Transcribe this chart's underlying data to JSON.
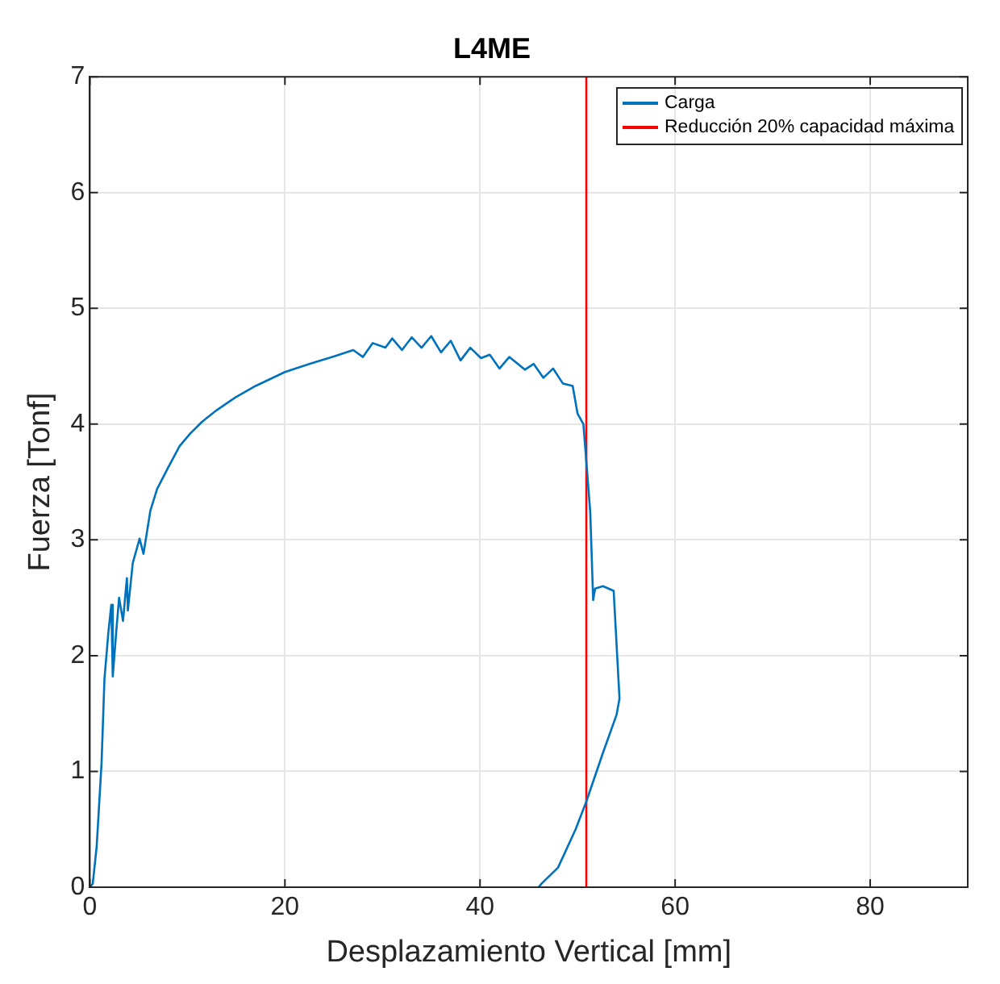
{
  "chart_data": {
    "type": "line",
    "title": "L4ME",
    "xlabel": "Desplazamiento Vertical [mm]",
    "ylabel": "Fuerza [Tonf]",
    "xlim": [
      0,
      90
    ],
    "xticks": [
      0,
      20,
      40,
      60,
      80
    ],
    "ylim": [
      0,
      7
    ],
    "yticks": [
      0,
      1,
      2,
      3,
      4,
      5,
      6,
      7
    ],
    "grid": true,
    "legend": "top right",
    "series": [
      {
        "name": "Carga",
        "color": "#0072bd",
        "x": [
          0,
          0.3,
          0.7,
          1.2,
          1.5,
          1.9,
          2.2,
          2.35,
          2.7,
          3.0,
          3.4,
          3.8,
          3.9,
          4.4,
          5.1,
          5.5,
          6.2,
          6.9,
          8.0,
          9.2,
          10.3,
          11.5,
          13.0,
          14.9,
          17.0,
          20,
          22.5,
          25.2,
          27,
          28,
          29,
          30.3,
          31,
          32,
          33,
          34,
          35,
          36,
          37,
          38,
          39,
          40.1,
          41,
          42,
          43,
          44.6,
          45.5,
          46.5,
          47.5,
          48.5,
          49.5,
          50,
          50.6,
          51.3,
          51.6,
          51.8,
          52.6,
          53.7,
          54.3,
          54.0,
          52.6,
          50.9,
          49.8,
          48,
          46.3,
          46
        ],
        "values": [
          0,
          0.03,
          0.35,
          1.07,
          1.8,
          2.2,
          2.44,
          1.82,
          2.2,
          2.5,
          2.3,
          2.67,
          2.39,
          2.8,
          3.01,
          2.88,
          3.25,
          3.44,
          3.62,
          3.81,
          3.92,
          4.02,
          4.12,
          4.23,
          4.33,
          4.45,
          4.52,
          4.59,
          4.64,
          4.58,
          4.7,
          4.66,
          4.74,
          4.64,
          4.75,
          4.66,
          4.76,
          4.62,
          4.72,
          4.55,
          4.66,
          4.57,
          4.6,
          4.48,
          4.58,
          4.47,
          4.52,
          4.4,
          4.48,
          4.35,
          4.33,
          4.09,
          4.0,
          3.24,
          2.48,
          2.58,
          2.6,
          2.56,
          1.63,
          1.49,
          1.16,
          0.74,
          0.5,
          0.17,
          0.03,
          0
        ]
      },
      {
        "name": "Reducción 20% capacidad máxima",
        "color": "#ff0000",
        "x": [
          50.9,
          50.9
        ],
        "values": [
          0,
          7
        ]
      }
    ]
  }
}
